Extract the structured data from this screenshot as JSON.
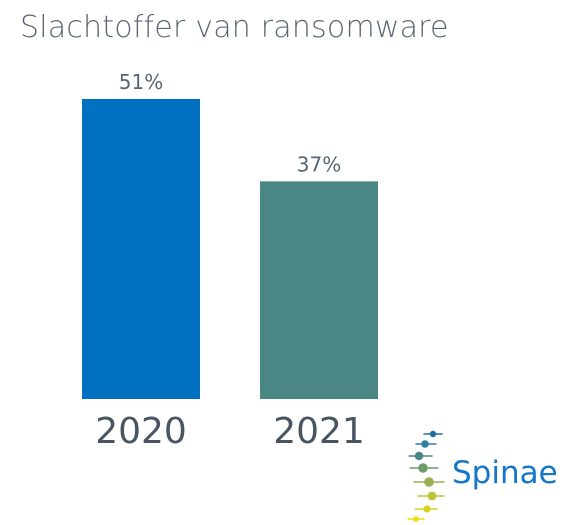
{
  "chart_data": {
    "type": "bar",
    "title": "Slachtoffer van ransomware",
    "categories": [
      "2020",
      "2021"
    ],
    "values": [
      51,
      37
    ],
    "data_labels": [
      "51%",
      "37%"
    ],
    "unit": "%",
    "ylim": [
      0,
      51
    ],
    "colors": [
      "#0070c0",
      "#4a8784"
    ],
    "grid": false,
    "legend": "none"
  },
  "logo": {
    "text": "Spinae",
    "icon": "spinae-logo-icon"
  }
}
